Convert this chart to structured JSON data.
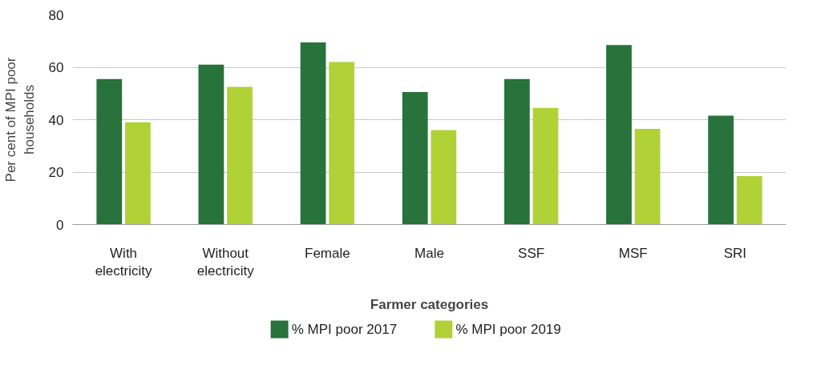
{
  "chart_data": {
    "type": "bar",
    "xlabel": "Farmer categories",
    "ylabel": "Per cent of MPI poor households",
    "categories": [
      "With electricity",
      "Without electricity",
      "Female",
      "Male",
      "SSF",
      "MSF",
      "SRI"
    ],
    "series": [
      {
        "name": "% MPI poor 2017",
        "color": "#27733b",
        "values": [
          55.5,
          61,
          69.5,
          50.5,
          55.5,
          68.5,
          41.5
        ]
      },
      {
        "name": "% MPI poor 2019",
        "color": "#b0d236",
        "values": [
          39,
          52.5,
          62,
          36,
          44.5,
          36.5,
          18.5
        ]
      }
    ],
    "ylim": [
      0,
      80
    ],
    "yticks": [
      0,
      20,
      40,
      60,
      80
    ],
    "grid": "y",
    "legend": "bottom"
  }
}
